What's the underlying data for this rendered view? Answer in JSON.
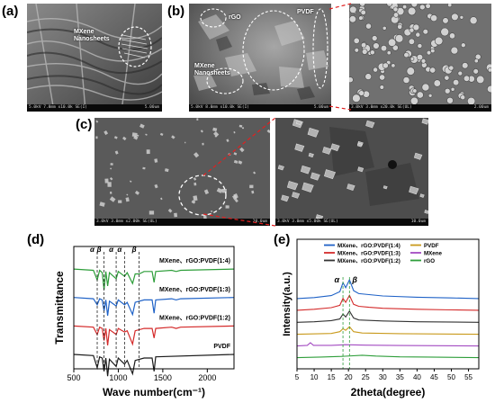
{
  "panels": {
    "a": {
      "label": "(a)",
      "annotation": [
        "MXene",
        "Nanosheets"
      ],
      "info_left": "5.0kV 7.8mm x10.0k SE(I)",
      "info_right": "5.00um"
    },
    "b": {
      "label": "(b)",
      "annotations": {
        "rgo": "rGO",
        "pvdf": "PVDF",
        "mxene": [
          "MXene",
          "Nanosheets"
        ]
      },
      "left_info_left": "5.0kV 8.0mm x10.0k SE(I)",
      "left_info_right": "5.00um",
      "right_info_left": "3.0kV 3.0mm x20.0k SE(UL)",
      "right_info_right": "2.00um"
    },
    "c": {
      "label": "(c)",
      "left_info_left": "3.0kV 3.0mm x2.00k SE(UL)",
      "left_info_right": "20.0um",
      "right_info_left": "3.0kV 3.0mm x5.00k SE(UL)",
      "right_info_right": "10.0um"
    },
    "d": {
      "label": "(d)"
    },
    "e": {
      "label": "(e)"
    }
  },
  "chart_data": [
    {
      "type": "line",
      "panel": "d",
      "xlabel": "Wave number(cm⁻¹)",
      "ylabel": "Transmittance",
      "xlim": [
        500,
        2300
      ],
      "xticks": [
        500,
        1000,
        1500,
        2000
      ],
      "y_ticks_shown": false,
      "phase_markers": [
        {
          "label": "α",
          "x": 763
        },
        {
          "label": "β",
          "x": 840
        },
        {
          "label": "α",
          "x": 976
        },
        {
          "label": "α",
          "x": 1070
        },
        {
          "label": "β",
          "x": 1234
        }
      ],
      "series": [
        {
          "name": "MXene、rGO:PVDF(1:4)",
          "color": "#2e9e3a",
          "offset": 3,
          "points": [
            [
              500,
              0
            ],
            [
              720,
              -0.05
            ],
            [
              763,
              -0.45
            ],
            [
              790,
              -0.05
            ],
            [
              820,
              -0.15
            ],
            [
              840,
              -0.85
            ],
            [
              860,
              -0.1
            ],
            [
              880,
              -0.7
            ],
            [
              900,
              -0.15
            ],
            [
              976,
              -0.4
            ],
            [
              1000,
              -0.1
            ],
            [
              1070,
              -0.3
            ],
            [
              1100,
              -0.15
            ],
            [
              1160,
              -0.6
            ],
            [
              1190,
              -0.2
            ],
            [
              1234,
              -0.2
            ],
            [
              1290,
              -0.1
            ],
            [
              1380,
              -0.1
            ],
            [
              1402,
              -0.55
            ],
            [
              1420,
              -0.1
            ],
            [
              1600,
              -0.05
            ],
            [
              1650,
              -0.1
            ],
            [
              1700,
              -0.05
            ],
            [
              2300,
              0
            ]
          ]
        },
        {
          "name": "MXene、rGO:PVDF(1:3)",
          "color": "#1f62c7",
          "offset": 2,
          "points": [
            [
              500,
              0
            ],
            [
              720,
              -0.05
            ],
            [
              763,
              -0.3
            ],
            [
              790,
              -0.05
            ],
            [
              820,
              -0.1
            ],
            [
              840,
              -0.55
            ],
            [
              860,
              -0.1
            ],
            [
              880,
              -0.75
            ],
            [
              900,
              -0.15
            ],
            [
              976,
              -0.35
            ],
            [
              1000,
              -0.1
            ],
            [
              1070,
              -0.3
            ],
            [
              1100,
              -0.2
            ],
            [
              1160,
              -0.7
            ],
            [
              1190,
              -0.2
            ],
            [
              1290,
              -0.1
            ],
            [
              1380,
              -0.1
            ],
            [
              1402,
              -0.65
            ],
            [
              1420,
              -0.1
            ],
            [
              1600,
              -0.05
            ],
            [
              1650,
              -0.1
            ],
            [
              1700,
              -0.05
            ],
            [
              2300,
              0
            ]
          ]
        },
        {
          "name": "MXene、rGO:PVDF(1:2)",
          "color": "#d42a2a",
          "offset": 1,
          "points": [
            [
              500,
              0
            ],
            [
              720,
              -0.05
            ],
            [
              763,
              -0.35
            ],
            [
              790,
              -0.05
            ],
            [
              820,
              -0.1
            ],
            [
              840,
              -0.6
            ],
            [
              860,
              -0.1
            ],
            [
              880,
              -0.8
            ],
            [
              900,
              -0.15
            ],
            [
              976,
              -0.35
            ],
            [
              1000,
              -0.1
            ],
            [
              1070,
              -0.25
            ],
            [
              1100,
              -0.2
            ],
            [
              1160,
              -0.75
            ],
            [
              1190,
              -0.2
            ],
            [
              1290,
              -0.1
            ],
            [
              1380,
              -0.1
            ],
            [
              1402,
              -0.5
            ],
            [
              1420,
              -0.1
            ],
            [
              1600,
              -0.05
            ],
            [
              1650,
              -0.1
            ],
            [
              1700,
              -0.05
            ],
            [
              2300,
              0
            ]
          ]
        },
        {
          "name": "PVDF",
          "color": "#1a1a1a",
          "offset": 0,
          "points": [
            [
              500,
              0
            ],
            [
              720,
              -0.05
            ],
            [
              763,
              -0.55
            ],
            [
              790,
              -0.1
            ],
            [
              820,
              -0.15
            ],
            [
              840,
              -0.7
            ],
            [
              860,
              -0.15
            ],
            [
              880,
              -0.9
            ],
            [
              900,
              -0.2
            ],
            [
              976,
              -0.5
            ],
            [
              1000,
              -0.15
            ],
            [
              1070,
              -0.4
            ],
            [
              1100,
              -0.25
            ],
            [
              1160,
              -0.8
            ],
            [
              1190,
              -0.25
            ],
            [
              1290,
              -0.15
            ],
            [
              1380,
              -0.15
            ],
            [
              1402,
              -0.7
            ],
            [
              1420,
              -0.1
            ],
            [
              2300,
              0
            ]
          ]
        }
      ]
    },
    {
      "type": "line",
      "panel": "e",
      "xlabel": "2theta(degree)",
      "ylabel": "Intensity(a.u.)",
      "xlim": [
        5,
        58
      ],
      "xticks": [
        5,
        10,
        15,
        20,
        25,
        30,
        35,
        40,
        45,
        50,
        55
      ],
      "y_ticks_shown": false,
      "phase_markers": [
        {
          "label": "α",
          "x": 18.4
        },
        {
          "label": "β",
          "x": 20.3
        }
      ],
      "legend": {
        "placement": "top",
        "columns": 2
      },
      "series": [
        {
          "name": "MXene、rGO:PVDF(1:4)",
          "color": "#1f62c7",
          "offset": 5,
          "points": [
            [
              5,
              0.05
            ],
            [
              10,
              0.1
            ],
            [
              15,
              0.2
            ],
            [
              17.5,
              0.4
            ],
            [
              18.4,
              0.85
            ],
            [
              19.2,
              0.6
            ],
            [
              20.3,
              1.0
            ],
            [
              21.5,
              0.45
            ],
            [
              23,
              0.3
            ],
            [
              26,
              0.25
            ],
            [
              30,
              0.18
            ],
            [
              40,
              0.12
            ],
            [
              50,
              0.08
            ],
            [
              58,
              0.05
            ]
          ]
        },
        {
          "name": "MXene、rGO:PVDF(1:3)",
          "color": "#d42a2a",
          "offset": 4,
          "points": [
            [
              5,
              0.05
            ],
            [
              10,
              0.1
            ],
            [
              15,
              0.18
            ],
            [
              17.5,
              0.3
            ],
            [
              18.4,
              0.65
            ],
            [
              19.2,
              0.45
            ],
            [
              20.3,
              0.8
            ],
            [
              21.5,
              0.35
            ],
            [
              23,
              0.25
            ],
            [
              26,
              0.2
            ],
            [
              30,
              0.15
            ],
            [
              40,
              0.1
            ],
            [
              50,
              0.07
            ],
            [
              58,
              0.05
            ]
          ]
        },
        {
          "name": "MXene、rGO:PVDF(1:2)",
          "color": "#333333",
          "offset": 3,
          "points": [
            [
              5,
              0.03
            ],
            [
              10,
              0.06
            ],
            [
              15,
              0.12
            ],
            [
              17.5,
              0.2
            ],
            [
              18.4,
              0.45
            ],
            [
              19.2,
              0.3
            ],
            [
              20.3,
              0.6
            ],
            [
              21.5,
              0.25
            ],
            [
              23,
              0.15
            ],
            [
              30,
              0.1
            ],
            [
              40,
              0.06
            ],
            [
              58,
              0.03
            ]
          ]
        },
        {
          "name": "PVDF",
          "color": "#c99a1c",
          "offset": 2,
          "points": [
            [
              5,
              0.02
            ],
            [
              15,
              0.06
            ],
            [
              17.5,
              0.15
            ],
            [
              18.4,
              0.3
            ],
            [
              19.2,
              0.22
            ],
            [
              20.3,
              0.4
            ],
            [
              21.5,
              0.15
            ],
            [
              24,
              0.08
            ],
            [
              35,
              0.05
            ],
            [
              58,
              0.02
            ]
          ]
        },
        {
          "name": "MXene",
          "color": "#a34bc2",
          "offset": 1,
          "points": [
            [
              5,
              0.02
            ],
            [
              8,
              0.05
            ],
            [
              8.9,
              0.18
            ],
            [
              9.8,
              0.05
            ],
            [
              15,
              0.05
            ],
            [
              19,
              0.08
            ],
            [
              25,
              0.06
            ],
            [
              35,
              0.04
            ],
            [
              58,
              0.02
            ]
          ]
        },
        {
          "name": "rGO",
          "color": "#2e9e3a",
          "offset": 0,
          "points": [
            [
              5,
              0.02
            ],
            [
              12,
              0.05
            ],
            [
              18,
              0.08
            ],
            [
              24,
              0.14
            ],
            [
              28,
              0.1
            ],
            [
              35,
              0.06
            ],
            [
              43,
              0.05
            ],
            [
              58,
              0.02
            ]
          ]
        }
      ]
    }
  ]
}
